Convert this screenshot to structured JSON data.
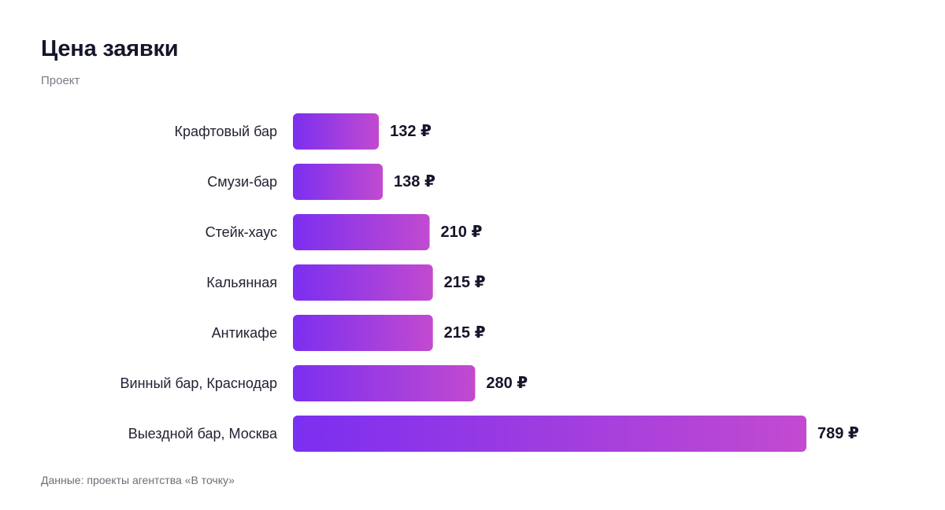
{
  "chart_data": {
    "type": "bar",
    "orientation": "horizontal",
    "title": "Цена заявки",
    "subtitle": "Проект",
    "categories": [
      "Крафтовый бар",
      "Смузи-бар",
      "Стейк-хаус",
      "Кальянная",
      "Антикафе",
      "Винный бар, Краснодар",
      "Выездной бар, Москва"
    ],
    "values": [
      132,
      138,
      210,
      215,
      215,
      280,
      789
    ],
    "value_labels": [
      "132 ₽",
      "138 ₽",
      "210 ₽",
      "215 ₽",
      "215 ₽",
      "280 ₽",
      "789 ₽"
    ],
    "unit": "₽",
    "xlim": [
      0,
      789
    ],
    "grid": false,
    "legend": "none",
    "bar_gradient": [
      "#7b2ff0",
      "#c24ad0"
    ],
    "source": "Данные: проекты агентства «В точку»"
  }
}
